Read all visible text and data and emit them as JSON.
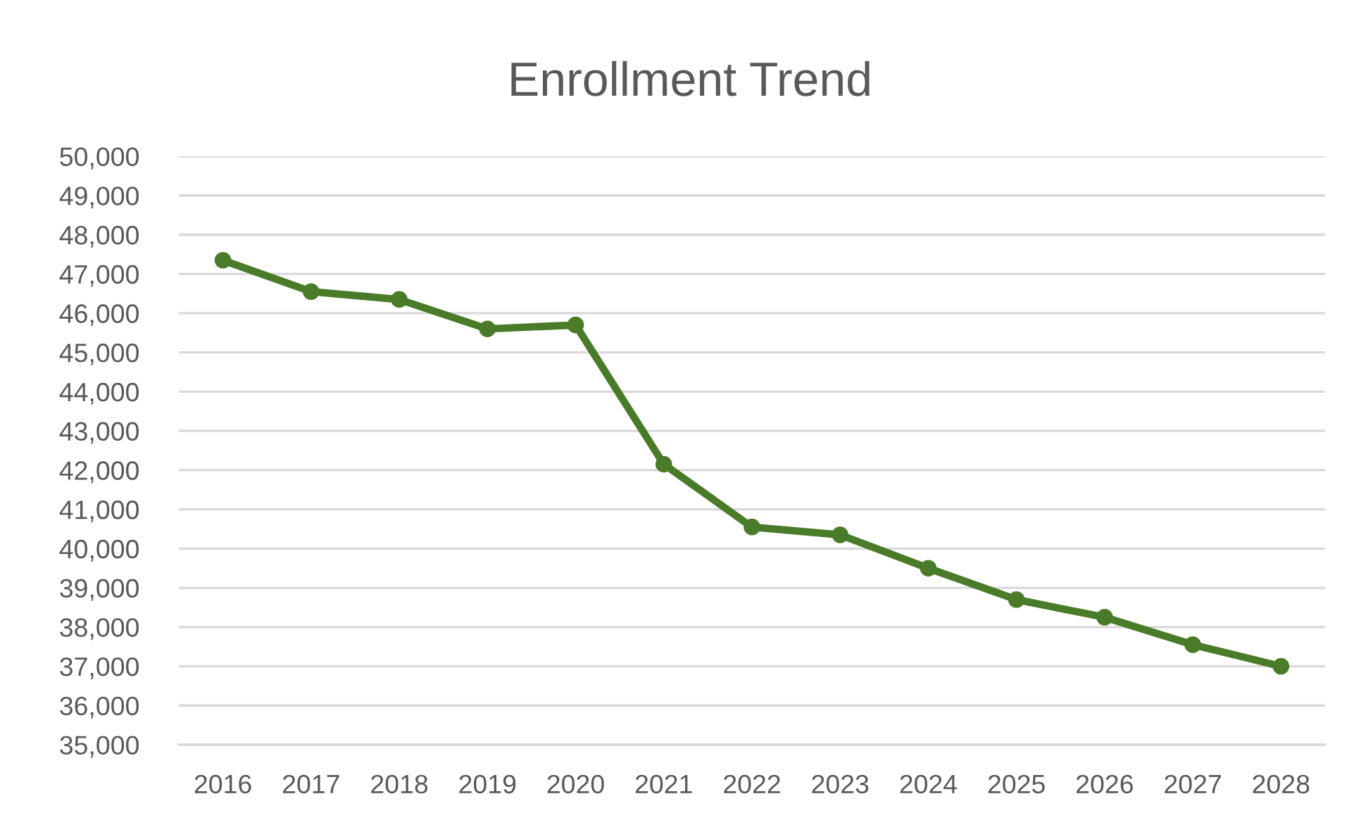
{
  "chart_data": {
    "type": "line",
    "title": "Enrollment Trend",
    "categories": [
      "2016",
      "2017",
      "2018",
      "2019",
      "2020",
      "2021",
      "2022",
      "2023",
      "2024",
      "2025",
      "2026",
      "2027",
      "2028"
    ],
    "series": [
      {
        "color": "#4a7b29",
        "values": [
          47350,
          46550,
          46350,
          45600,
          45700,
          42150,
          40550,
          40350,
          39500,
          38700,
          38250,
          37550,
          37000
        ]
      }
    ],
    "ylim": [
      35000,
      50000
    ],
    "yticks": [
      {
        "value": 35000,
        "label": "35,000"
      },
      {
        "value": 36000,
        "label": "36,000"
      },
      {
        "value": 37000,
        "label": "37,000"
      },
      {
        "value": 38000,
        "label": "38,000"
      },
      {
        "value": 39000,
        "label": "39,000"
      },
      {
        "value": 40000,
        "label": "40,000"
      },
      {
        "value": 41000,
        "label": "41,000"
      },
      {
        "value": 42000,
        "label": "42,000"
      },
      {
        "value": 43000,
        "label": "43,000"
      },
      {
        "value": 44000,
        "label": "44,000"
      },
      {
        "value": 45000,
        "label": "45,000"
      },
      {
        "value": 46000,
        "label": "46,000"
      },
      {
        "value": 47000,
        "label": "47,000"
      },
      {
        "value": 48000,
        "label": "48,000"
      },
      {
        "value": 49000,
        "label": "49,000"
      },
      {
        "value": 50000,
        "label": "50,000"
      }
    ],
    "grid": "y",
    "marker": "circle",
    "line_style": "solid"
  }
}
